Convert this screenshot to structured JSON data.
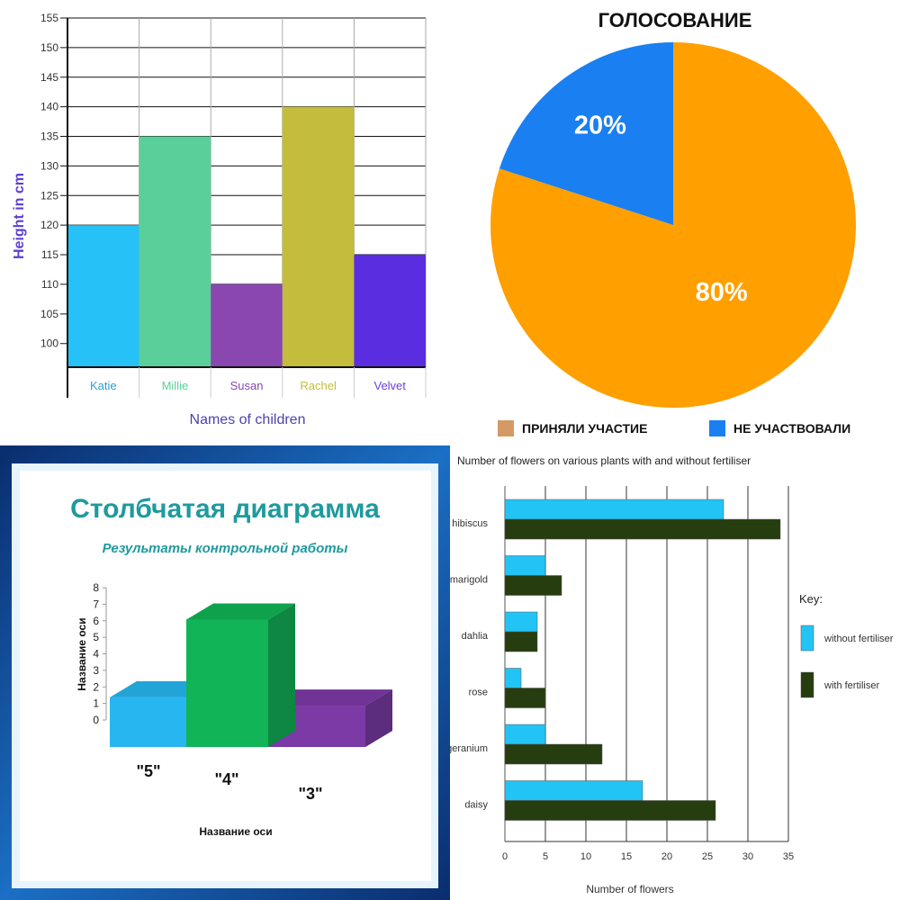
{
  "chart_data": [
    {
      "type": "bar",
      "title": "",
      "xlabel": "Names of children",
      "ylabel": "Height in cm",
      "categories": [
        "Katie",
        "Millie",
        "Susan",
        "Rachel",
        "Velvet"
      ],
      "values": [
        120,
        135,
        110,
        140,
        115
      ],
      "colors": [
        "#26c1f7",
        "#5bcf99",
        "#8a47b0",
        "#c4bc3c",
        "#5a2ee0"
      ],
      "label_colors": [
        "#2c9fd6",
        "#5bcf99",
        "#8a47b0",
        "#c4bc3c",
        "#6b3fd6"
      ],
      "yticks": [
        100,
        105,
        110,
        115,
        120,
        125,
        130,
        135,
        140,
        145,
        150,
        155
      ],
      "ylim": [
        96,
        155
      ],
      "grid": true
    },
    {
      "type": "pie",
      "title": "ГОЛОСОВАНИЕ",
      "slices": [
        {
          "label": "ПРИНЯЛИ УЧАСТИЕ",
          "value": 80,
          "display": "80%",
          "color": "#ff9f00",
          "legend_color": "#d59a64"
        },
        {
          "label": "НЕ УЧАСТВОВАЛИ",
          "value": 20,
          "display": "20%",
          "color": "#1a7ff0",
          "legend_color": "#1a7ff0"
        }
      ],
      "legend_position": "bottom"
    },
    {
      "type": "bar",
      "title": "Столбчатая диаграмма",
      "subtitle": "Результаты контрольной работы",
      "xlabel": "Название оси",
      "ylabel": "Название оси",
      "categories": [
        "\"5\"",
        "\"4\"",
        "\"3\""
      ],
      "values": [
        3,
        7.7,
        2.5
      ],
      "colors": [
        "#27b6f0",
        "#11b456",
        "#7b3aa6"
      ],
      "yticks": [
        0,
        1,
        2,
        3,
        4,
        5,
        6,
        7,
        8
      ],
      "ylim": [
        0,
        8
      ],
      "style": "3d"
    },
    {
      "type": "bar",
      "orientation": "horizontal",
      "title": "Number of flowers on various plants with and without fertiliser",
      "xlabel": "Number of flowers",
      "categories": [
        "hibiscus",
        "marigold",
        "dahlia",
        "rose",
        "geranium",
        "daisy"
      ],
      "series": [
        {
          "name": "without fertiliser",
          "values": [
            27,
            5,
            4,
            2,
            5,
            17
          ],
          "color": "#22c4f5"
        },
        {
          "name": "with fertiliser",
          "values": [
            34,
            7,
            4,
            5,
            12,
            26
          ],
          "color": "#263d0f"
        }
      ],
      "xticks": [
        0,
        5,
        10,
        15,
        20,
        25,
        30,
        35
      ],
      "xlim": [
        0,
        35
      ],
      "legend_title": "Key:",
      "legend_position": "right"
    }
  ]
}
